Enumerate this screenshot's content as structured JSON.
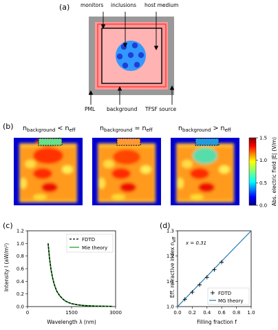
{
  "panel_a": {
    "label": "(a)",
    "labels": {
      "monitors": "monitors",
      "inclusions": "inclusions",
      "host_medium": "host medium",
      "pml": "PML",
      "background": "background",
      "tfsf": "TFSF source"
    },
    "colors": {
      "pml": "#999999",
      "background": "#ff9999",
      "host": "#ffb3b3",
      "sphere": "#3399ff",
      "inclusion": "#1f3fd6",
      "monitor": "#000000"
    }
  },
  "panel_b": {
    "label": "(b)",
    "columns": [
      {
        "prefix": "n",
        "prefix_sub": "background",
        "relation": " < ",
        "suffix": "n",
        "suffix_sub": "eff"
      },
      {
        "prefix": "n",
        "prefix_sub": "background",
        "relation": " = ",
        "suffix": "n",
        "suffix_sub": "eff"
      },
      {
        "prefix": "n",
        "prefix_sub": "background",
        "relation": " > ",
        "suffix": "n",
        "suffix_sub": "eff"
      }
    ],
    "colorbar": {
      "label": "Abs. electric field |E| (V/m)",
      "ticks": [
        "0.0",
        "0.5",
        "1.0",
        "1.5"
      ],
      "range": [
        0,
        1.5
      ],
      "colormap": "jet"
    }
  },
  "chart_data": [
    {
      "panel": "(c)",
      "type": "line",
      "xlabel": "Wavelength λ (nm)",
      "ylabel": "Intensity I (aW/m²)",
      "xlim": [
        0,
        3000
      ],
      "ylim": [
        0,
        1.2
      ],
      "xticks": [
        "0",
        "1500",
        "3000"
      ],
      "yticks": [
        "0.0",
        "0.2",
        "0.4",
        "0.6",
        "0.8",
        "1.0",
        "1.2"
      ],
      "legend_position": "top-right",
      "series": [
        {
          "name": "FDTD",
          "style": "dashed",
          "color": "#000000",
          "x": [
            700,
            750,
            800,
            850,
            900,
            950,
            1000,
            1100,
            1200,
            1300,
            1400,
            1500,
            1700,
            1900,
            2100,
            2300,
            2500,
            2700,
            2900
          ],
          "y": [
            1.0,
            0.76,
            0.59,
            0.46,
            0.37,
            0.3,
            0.24,
            0.17,
            0.12,
            0.085,
            0.063,
            0.047,
            0.028,
            0.018,
            0.012,
            0.008,
            0.006,
            0.004,
            0.003
          ]
        },
        {
          "name": "Mie theory",
          "style": "solid",
          "color": "#2ca02c",
          "x": [
            700,
            750,
            800,
            850,
            900,
            950,
            1000,
            1100,
            1200,
            1300,
            1400,
            1500,
            1700,
            1900,
            2100,
            2300,
            2500,
            2700,
            2900
          ],
          "y": [
            1.0,
            0.76,
            0.59,
            0.46,
            0.37,
            0.3,
            0.24,
            0.17,
            0.12,
            0.085,
            0.063,
            0.047,
            0.028,
            0.018,
            0.012,
            0.008,
            0.006,
            0.004,
            0.003
          ]
        }
      ]
    },
    {
      "panel": "(d)",
      "type": "scatter",
      "xlabel": "Filling fraction f",
      "ylabel": "Eff. refractive index n_eff",
      "xlim": [
        0,
        1.0
      ],
      "ylim": [
        1.0,
        1.3
      ],
      "xticks": [
        "0.0",
        "0.2",
        "0.4",
        "0.6",
        "0.8",
        "1.0"
      ],
      "yticks": [
        "1.0",
        "1.1",
        "1.2",
        "1.3"
      ],
      "annotation": "x = 0.31",
      "legend_position": "bottom-right",
      "series": [
        {
          "name": "FDTD",
          "marker": "+",
          "color": "#000000",
          "x": [
            0.1,
            0.2,
            0.3,
            0.4,
            0.5,
            0.6
          ],
          "y": [
            1.029,
            1.057,
            1.086,
            1.116,
            1.146,
            1.176
          ]
        },
        {
          "name": "MG theory",
          "style": "solid",
          "color": "#1f77b4",
          "x": [
            0.0,
            1.0
          ],
          "y": [
            1.0,
            1.3
          ]
        }
      ]
    }
  ]
}
